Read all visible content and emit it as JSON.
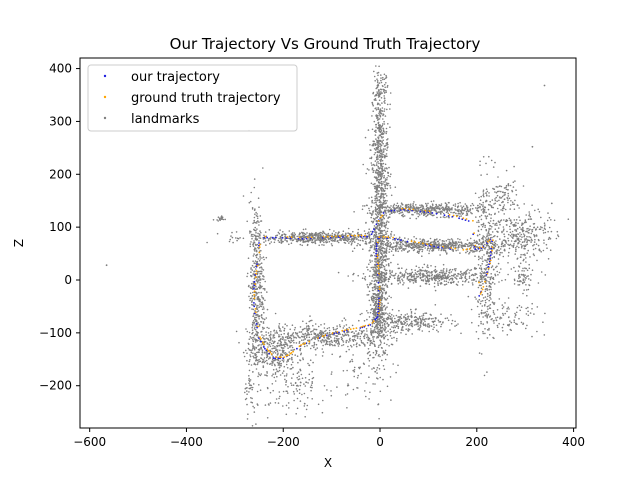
{
  "colors": {
    "our_trajectory": "#1f1fe0",
    "ground_truth": "#ffa500",
    "landmarks": "#7f7f7f",
    "frame": "#000000"
  },
  "chart_data": {
    "type": "scatter",
    "title": "Our Trajectory Vs Ground Truth Trajectory",
    "xlabel": "X",
    "ylabel": "Z",
    "xlim": [
      -620,
      405
    ],
    "ylim": [
      -280,
      420
    ],
    "xticks": [
      -600,
      -400,
      -200,
      0,
      200,
      400
    ],
    "yticks": [
      -200,
      -100,
      0,
      100,
      200,
      300,
      400
    ],
    "grid": false,
    "legend_position": "top-left",
    "series": [
      {
        "name": "our trajectory",
        "color": "#1f1fe0",
        "point_type": "trajectory",
        "x": [
          -250,
          -252,
          -258,
          -262,
          -258,
          -250,
          -238,
          -220,
          -200,
          -185,
          -165,
          -140,
          -110,
          -80,
          -45,
          -20,
          -5,
          -2,
          -3,
          -5,
          -8,
          -6,
          0,
          30,
          70,
          120,
          170,
          210,
          232,
          228,
          220,
          210,
          205,
          190,
          150,
          100,
          50,
          10,
          -5,
          -20,
          -60,
          -110,
          -160,
          -210,
          -245
        ],
        "y": [
          70,
          40,
          10,
          -30,
          -70,
          -110,
          -130,
          -148,
          -148,
          -140,
          -125,
          -115,
          -105,
          -98,
          -92,
          -85,
          -70,
          -40,
          -10,
          20,
          50,
          78,
          80,
          78,
          70,
          62,
          55,
          60,
          80,
          40,
          10,
          -20,
          -30,
          110,
          120,
          128,
          133,
          130,
          110,
          82,
          82,
          80,
          78,
          80,
          80
        ]
      },
      {
        "name": "ground truth trajectory",
        "color": "#ffa500",
        "point_type": "trajectory",
        "x": [
          -248,
          -250,
          -256,
          -260,
          -256,
          -248,
          -236,
          -218,
          -198,
          -183,
          -163,
          -138,
          -108,
          -78,
          -43,
          -18,
          -3,
          0,
          -1,
          -3,
          -6,
          -4,
          2,
          32,
          72,
          122,
          172,
          212,
          234,
          230,
          222,
          212,
          207,
          192,
          152,
          102,
          52,
          12,
          -3,
          -18,
          -58,
          -108,
          -158,
          -208,
          -243
        ],
        "y": [
          72,
          42,
          12,
          -28,
          -68,
          -108,
          -128,
          -146,
          -146,
          -138,
          -123,
          -113,
          -103,
          -96,
          -90,
          -83,
          -68,
          -38,
          -8,
          22,
          52,
          80,
          82,
          80,
          72,
          64,
          57,
          62,
          82,
          42,
          12,
          -18,
          -28,
          112,
          122,
          130,
          135,
          132,
          112,
          84,
          84,
          82,
          80,
          82,
          82
        ]
      },
      {
        "name": "landmarks",
        "color": "#7f7f7f",
        "point_type": "landmark_cloud",
        "clusters": [
          {
            "cx": 0,
            "cy": 80,
            "sx": 10,
            "sy": 120,
            "n": 900
          },
          {
            "cx": 0,
            "cy": 260,
            "sx": 8,
            "sy": 60,
            "n": 250
          },
          {
            "cx": 0,
            "cy": 360,
            "sx": 8,
            "sy": 20,
            "n": 50
          },
          {
            "cx": -125,
            "cy": 80,
            "sx": 70,
            "sy": 6,
            "n": 550
          },
          {
            "cx": -255,
            "cy": -20,
            "sx": 8,
            "sy": 85,
            "n": 450
          },
          {
            "cx": -225,
            "cy": -135,
            "sx": 25,
            "sy": 20,
            "n": 250
          },
          {
            "cx": -120,
            "cy": -108,
            "sx": 60,
            "sy": 12,
            "n": 450
          },
          {
            "cx": -180,
            "cy": -190,
            "sx": 35,
            "sy": 30,
            "n": 150
          },
          {
            "cx": -5,
            "cy": -50,
            "sx": 8,
            "sy": 50,
            "n": 300
          },
          {
            "cx": 100,
            "cy": 133,
            "sx": 60,
            "sy": 6,
            "n": 450
          },
          {
            "cx": 110,
            "cy": 65,
            "sx": 70,
            "sy": 6,
            "n": 550
          },
          {
            "cx": 110,
            "cy": 7,
            "sx": 65,
            "sy": 8,
            "n": 450
          },
          {
            "cx": 60,
            "cy": -80,
            "sx": 45,
            "sy": 10,
            "n": 280
          },
          {
            "cx": 220,
            "cy": 40,
            "sx": 12,
            "sy": 75,
            "n": 350
          },
          {
            "cx": 290,
            "cy": 85,
            "sx": 30,
            "sy": 25,
            "n": 300
          },
          {
            "cx": 255,
            "cy": 160,
            "sx": 15,
            "sy": 20,
            "n": 80
          },
          {
            "cx": 295,
            "cy": 5,
            "sx": 10,
            "sy": 15,
            "n": 60
          },
          {
            "cx": 270,
            "cy": -70,
            "sx": 30,
            "sy": 15,
            "n": 80
          },
          {
            "cx": -270,
            "cy": -215,
            "sx": 8,
            "sy": 25,
            "n": 30
          },
          {
            "cx": -330,
            "cy": 115,
            "sx": 5,
            "sy": 3,
            "n": 20
          },
          {
            "cx": -45,
            "cy": -170,
            "sx": 30,
            "sy": 25,
            "n": 50
          }
        ],
        "outliers_x": [
          -565,
          340,
          315,
          355,
          350
        ],
        "outliers_y": [
          28,
          368,
          252,
          145,
          80
        ]
      }
    ]
  }
}
